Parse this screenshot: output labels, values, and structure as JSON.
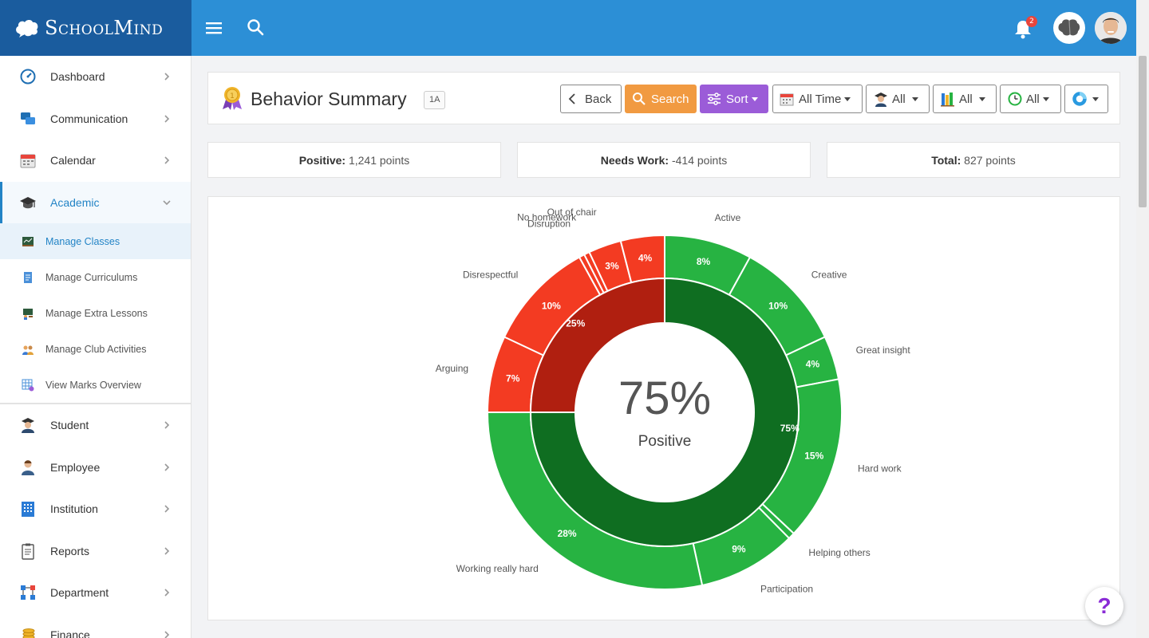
{
  "app": {
    "brand": "SchoolMind",
    "notification_count": "2"
  },
  "sidebar": {
    "items": [
      {
        "label": "Dashboard",
        "icon": "dashboard-icon"
      },
      {
        "label": "Communication",
        "icon": "chat-icon"
      },
      {
        "label": "Calendar",
        "icon": "calendar-icon"
      },
      {
        "label": "Academic",
        "icon": "graduation-cap-icon"
      },
      {
        "label": "Student",
        "icon": "student-icon"
      },
      {
        "label": "Employee",
        "icon": "employee-icon"
      },
      {
        "label": "Institution",
        "icon": "building-icon"
      },
      {
        "label": "Reports",
        "icon": "clipboard-icon"
      },
      {
        "label": "Department",
        "icon": "hierarchy-icon"
      },
      {
        "label": "Finance",
        "icon": "coins-icon"
      }
    ],
    "sub_items": [
      {
        "label": "Manage Classes",
        "icon": "chalkboard-icon"
      },
      {
        "label": "Manage Curriculums",
        "icon": "document-icon"
      },
      {
        "label": "Manage Extra Lessons",
        "icon": "blackboard-icon"
      },
      {
        "label": "Manage Club Activities",
        "icon": "group-icon"
      },
      {
        "label": "View Marks Overview",
        "icon": "table-icon"
      }
    ]
  },
  "header": {
    "title": "Behavior Summary",
    "class_badge": "1A",
    "back_label": "Back",
    "search_label": "Search",
    "sort_label": "Sort",
    "time_filter": "All Time",
    "teacher_filter": "All",
    "subject_filter": "All",
    "period_filter": "All"
  },
  "stats": {
    "positive_label": "Positive:",
    "positive_value": "1,241 points",
    "needs_work_label": "Needs Work:",
    "needs_work_value": "-414 points",
    "total_label": "Total:",
    "total_value": "827 points"
  },
  "colors": {
    "positive_outer": "#27b342",
    "positive_inner": "#0f6e21",
    "negative_outer": "#f33b22",
    "negative_inner": "#b01f10",
    "brand_dark": "#1a5c9e",
    "brand": "#2c8fd6"
  },
  "chart_data": {
    "type": "donut",
    "center_value": "75%",
    "center_label": "Positive",
    "inner_ring": [
      {
        "label": "75%",
        "value": 75,
        "group": "positive"
      },
      {
        "label": "25%",
        "value": 25,
        "group": "negative"
      }
    ],
    "outer_ring": [
      {
        "name": "Active",
        "value": 8,
        "label": "8%",
        "group": "positive"
      },
      {
        "name": "Creative",
        "value": 10,
        "label": "10%",
        "group": "positive"
      },
      {
        "name": "Great insight",
        "value": 4,
        "label": "4%",
        "group": "positive"
      },
      {
        "name": "Hard work",
        "value": 15,
        "label": "15%",
        "group": "positive"
      },
      {
        "name": "Helping others",
        "value": 0.6,
        "label": "",
        "group": "positive"
      },
      {
        "name": "Participation",
        "value": 9,
        "label": "9%",
        "group": "positive"
      },
      {
        "name": "Working really hard",
        "value": 28.4,
        "label": "28%",
        "group": "positive"
      },
      {
        "name": "Arguing",
        "value": 7,
        "label": "7%",
        "group": "negative"
      },
      {
        "name": "Disrespectful",
        "value": 10,
        "label": "10%",
        "group": "negative"
      },
      {
        "name": "Disruption",
        "value": 0.5,
        "label": "",
        "group": "negative"
      },
      {
        "name": "No homework",
        "value": 0.5,
        "label": "",
        "group": "negative"
      },
      {
        "name": "Out of chair",
        "value": 3,
        "label": "3%",
        "group": "negative"
      },
      {
        "name": "",
        "value": 4,
        "label": "4%",
        "group": "negative"
      }
    ]
  }
}
